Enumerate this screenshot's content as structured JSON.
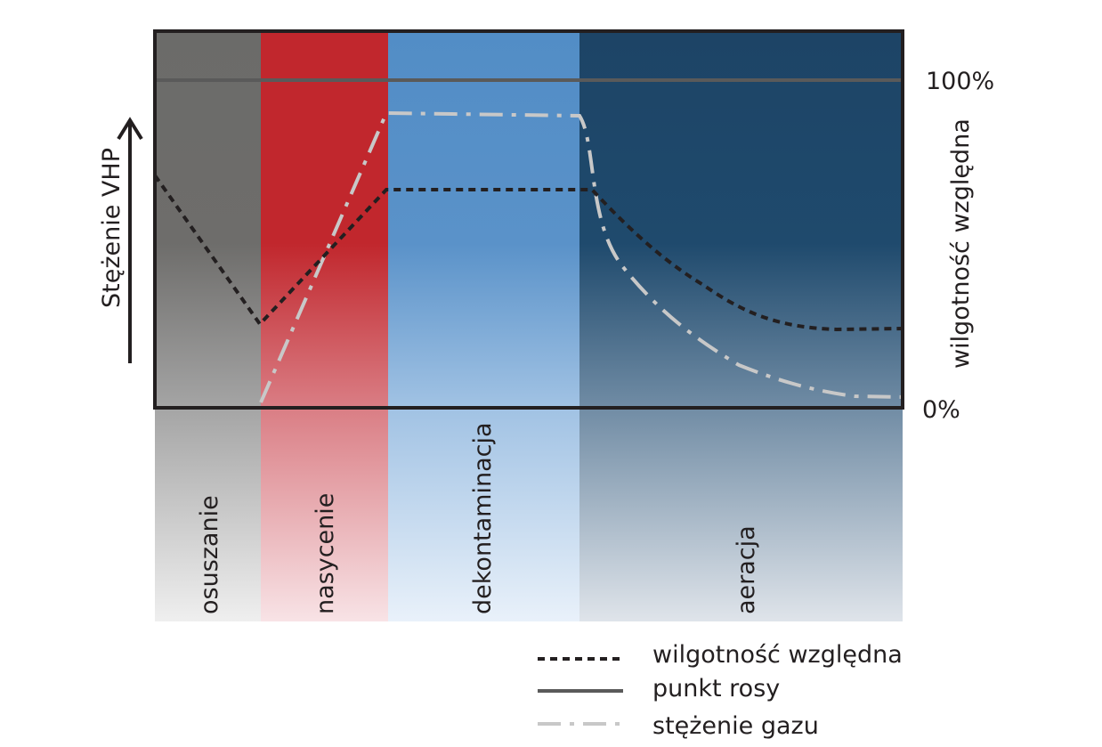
{
  "axes": {
    "left_label": "Stężenie VHP",
    "right_label": "wilgotność względna",
    "right_top_tick": "100%",
    "right_bottom_tick": "0%"
  },
  "phases": [
    {
      "label": "osuszanie",
      "color": "#6b6b6b"
    },
    {
      "label": "nasycenie",
      "color": "#c1272d"
    },
    {
      "label": "dekontaminacja",
      "color": "#538dc6"
    },
    {
      "label": "aeracja",
      "color": "#1c4466"
    }
  ],
  "legend": {
    "humidity": "wilgotność względna",
    "dew_point": "punkt rosy",
    "gas": "stężenie gazu"
  },
  "colors": {
    "dew_point_line": "#5a5a5a",
    "humidity_line": "#231f20",
    "gas_line": "#c8c8c8",
    "frame": "#231f20"
  }
}
